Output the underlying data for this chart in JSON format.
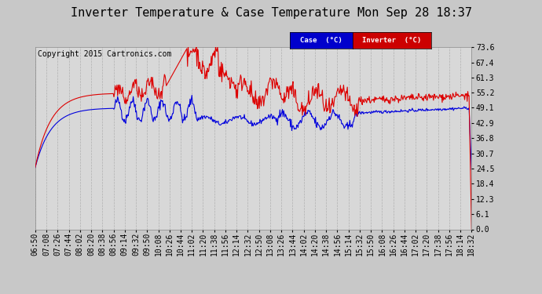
{
  "title": "Inverter Temperature & Case Temperature Mon Sep 28 18:37",
  "copyright": "Copyright 2015 Cartronics.com",
  "bg_color": "#c8c8c8",
  "plot_bg_color": "#d8d8d8",
  "grid_color": "#b0b0b0",
  "y_ticks": [
    0.0,
    6.1,
    12.3,
    18.4,
    24.5,
    30.7,
    36.8,
    42.9,
    49.1,
    55.2,
    61.3,
    67.4,
    73.6
  ],
  "x_labels": [
    "06:50",
    "07:08",
    "07:26",
    "07:44",
    "08:02",
    "08:20",
    "08:38",
    "08:56",
    "09:14",
    "09:32",
    "09:50",
    "10:08",
    "10:26",
    "10:44",
    "11:02",
    "11:20",
    "11:38",
    "11:56",
    "12:14",
    "12:32",
    "12:50",
    "13:08",
    "13:26",
    "13:44",
    "14:02",
    "14:20",
    "14:38",
    "14:56",
    "15:14",
    "15:32",
    "15:50",
    "16:08",
    "16:26",
    "16:44",
    "17:02",
    "17:20",
    "17:38",
    "17:56",
    "18:14",
    "18:32"
  ],
  "case_color": "#0000dd",
  "inverter_color": "#dd0000",
  "legend_case_bg": "#0000cc",
  "legend_inverter_bg": "#cc0000",
  "legend_text_color": "#ffffff",
  "title_fontsize": 11,
  "tick_fontsize": 7,
  "copyright_fontsize": 7,
  "ylim": [
    0.0,
    73.6
  ],
  "line_width": 0.8
}
